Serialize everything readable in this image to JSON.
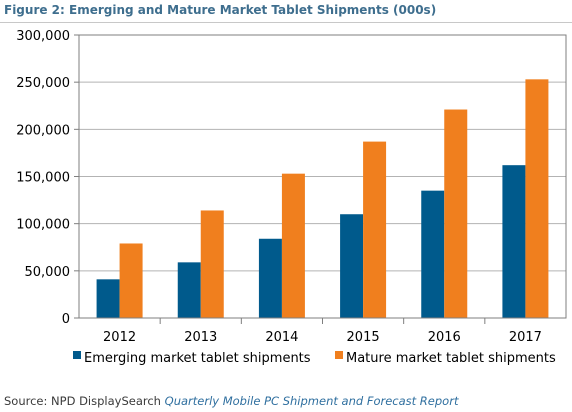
{
  "figure_title": "Figure 2: Emerging and Mature Market Tablet Shipments (000s)",
  "source": {
    "prefix": "Source: NPD DisplaySearch",
    "report": "Quarterly Mobile PC Shipment and Forecast Report"
  },
  "chart_data": {
    "type": "bar",
    "title": "",
    "xlabel": "",
    "ylabel": "",
    "categories": [
      "2012",
      "2013",
      "2014",
      "2015",
      "2016",
      "2017"
    ],
    "ylim": [
      0,
      300000
    ],
    "yticks": [
      0,
      50000,
      100000,
      150000,
      200000,
      250000,
      300000
    ],
    "ytick_labels": [
      "0",
      "50,000",
      "100,000",
      "150,000",
      "200,000",
      "250,000",
      "300,000"
    ],
    "grid": "horizontal",
    "legend_position": "bottom",
    "series": [
      {
        "name": "Emerging market tablet shipments",
        "color": "#005a8c",
        "values": [
          41000,
          59000,
          84000,
          110000,
          135000,
          162000
        ]
      },
      {
        "name": "Mature market tablet shipments",
        "color": "#f07f1e",
        "values": [
          79000,
          114000,
          153000,
          187000,
          221000,
          253000
        ]
      }
    ]
  }
}
